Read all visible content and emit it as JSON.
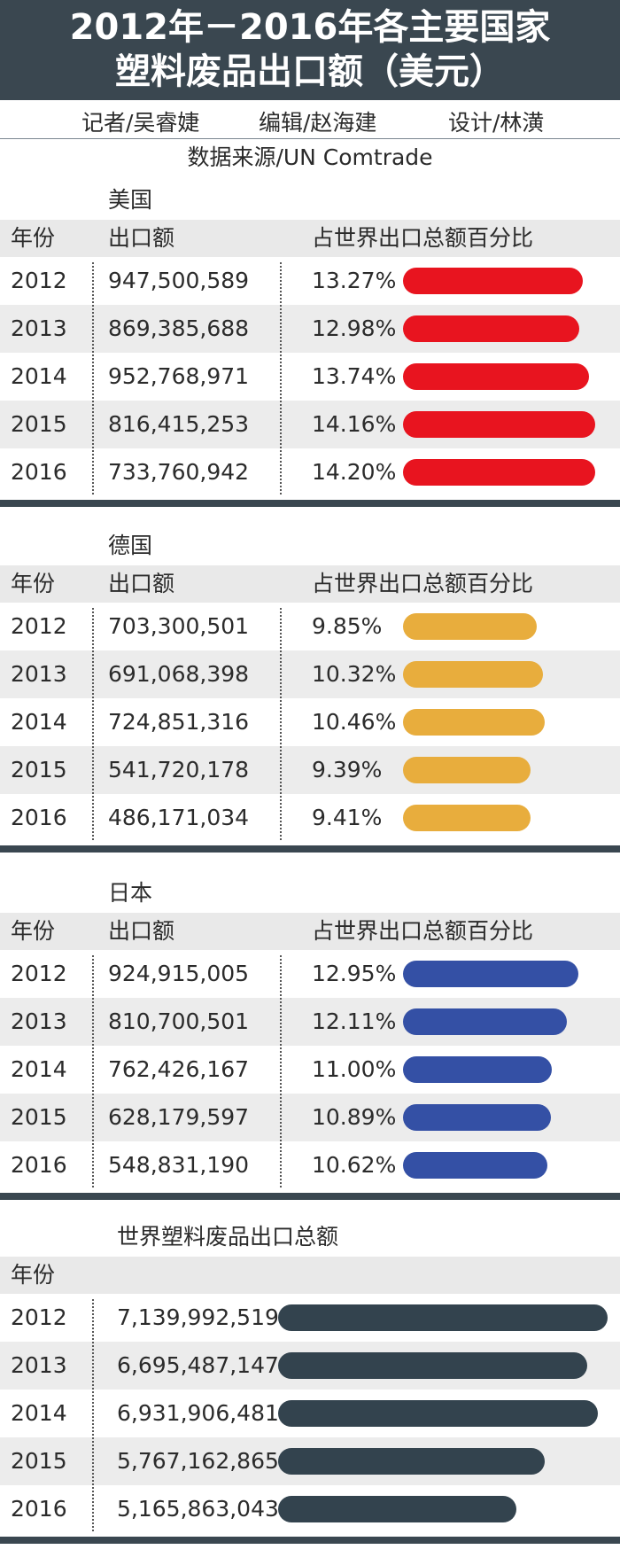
{
  "title": {
    "line1": "2012年－2016年各主要国家",
    "line2": "塑料废品出口额（美元）"
  },
  "credits": {
    "reporter": "记者/吴睿婕",
    "editor": "编辑/赵海建",
    "designer": "设计/林潢"
  },
  "source": "数据来源/UN Comtrade",
  "columns": {
    "year": "年份",
    "amount": "出口额",
    "share": "占世界出口总额百分比"
  },
  "colors": {
    "header": "#3a4750",
    "usa": "#e8141f",
    "germany": "#e8ad3d",
    "japan": "#3450a5",
    "world": "#33434e",
    "alt_row": "#ececec"
  },
  "chart_data": [
    {
      "type": "table",
      "title": "美国",
      "rows": [
        {
          "year": "2012",
          "amount": "947,500,589",
          "share": "13.27%"
        },
        {
          "year": "2013",
          "amount": "869,385,688",
          "share": "12.98%"
        },
        {
          "year": "2014",
          "amount": "952,768,971",
          "share": "13.74%"
        },
        {
          "year": "2015",
          "amount": "816,415,253",
          "share": "14.16%"
        },
        {
          "year": "2016",
          "amount": "733,760,942",
          "share": "14.20%"
        }
      ]
    },
    {
      "type": "table",
      "title": "德国",
      "rows": [
        {
          "year": "2012",
          "amount": "703,300,501",
          "share": "9.85%"
        },
        {
          "year": "2013",
          "amount": "691,068,398",
          "share": "10.32%"
        },
        {
          "year": "2014",
          "amount": "724,851,316",
          "share": "10.46%"
        },
        {
          "year": "2015",
          "amount": "541,720,178",
          "share": "9.39%"
        },
        {
          "year": "2016",
          "amount": "486,171,034",
          "share": "9.41%"
        }
      ]
    },
    {
      "type": "table",
      "title": "日本",
      "rows": [
        {
          "year": "2012",
          "amount": "924,915,005",
          "share": "12.95%"
        },
        {
          "year": "2013",
          "amount": "810,700,501",
          "share": "12.11%"
        },
        {
          "year": "2014",
          "amount": "762,426,167",
          "share": "11.00%"
        },
        {
          "year": "2015",
          "amount": "628,179,597",
          "share": "10.89%"
        },
        {
          "year": "2016",
          "amount": "548,831,190",
          "share": "10.62%"
        }
      ]
    },
    {
      "type": "table",
      "title": "世界塑料废品出口总额",
      "rows": [
        {
          "year": "2012",
          "amount": "7,139,992,519"
        },
        {
          "year": "2013",
          "amount": "6,695,487,147"
        },
        {
          "year": "2014",
          "amount": "6,931,906,481"
        },
        {
          "year": "2015",
          "amount": "5,767,162,865"
        },
        {
          "year": "2016",
          "amount": "5,165,863,043"
        }
      ]
    }
  ]
}
